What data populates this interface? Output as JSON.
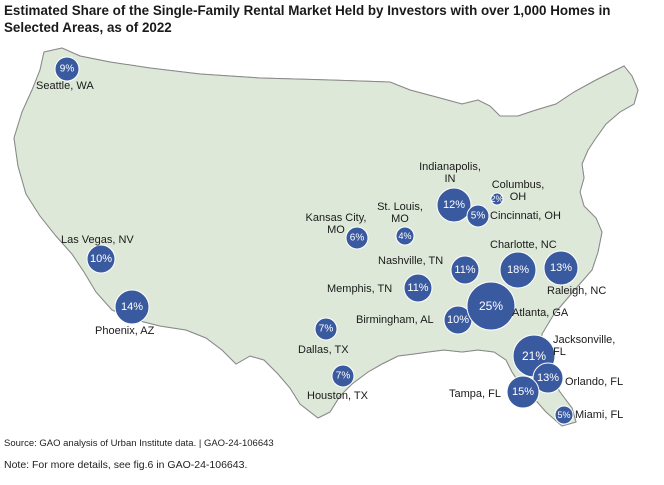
{
  "title": "Estimated Share of the Single-Family Rental Market Held by Investors with over 1,000 Homes in Selected Areas, as of 2022",
  "source": "Source: GAO analysis of Urban Institute data.  |  GAO-24-106643",
  "note": "Note: For more details, see fig.6 in GAO-24-106643.",
  "colors": {
    "land": "#dde8d9",
    "border": "#8a8a8a",
    "bubble": "#3a5aa0"
  },
  "markets": [
    {
      "id": "seattle",
      "pct": "9%",
      "label": [
        "Seattle, WA"
      ]
    },
    {
      "id": "lasvegas",
      "pct": "10%",
      "label": [
        "Las Vegas, NV"
      ]
    },
    {
      "id": "phoenix",
      "pct": "14%",
      "label": [
        "Phoenix, AZ"
      ]
    },
    {
      "id": "kansascity",
      "pct": "6%",
      "label": [
        "Kansas City,",
        "MO"
      ]
    },
    {
      "id": "stlouis",
      "pct": "4%",
      "label": [
        "St. Louis,",
        "MO"
      ]
    },
    {
      "id": "indianapolis",
      "pct": "12%",
      "label": [
        "Indianapolis,",
        "IN"
      ]
    },
    {
      "id": "columbus",
      "pct": "2%",
      "label": [
        "Columbus,",
        "OH"
      ]
    },
    {
      "id": "cincinnati",
      "pct": "5%",
      "label": [
        "Cincinnati, OH"
      ]
    },
    {
      "id": "charlotte",
      "pct": "18%",
      "label": [
        "Charlotte, NC"
      ]
    },
    {
      "id": "raleigh",
      "pct": "13%",
      "label": [
        "Raleigh, NC"
      ]
    },
    {
      "id": "nashville",
      "pct": "11%",
      "label": [
        "Nashville, TN"
      ]
    },
    {
      "id": "memphis",
      "pct": "11%",
      "label": [
        "Memphis, TN"
      ]
    },
    {
      "id": "birmingham",
      "pct": "10%",
      "label": [
        "Birmingham, AL"
      ]
    },
    {
      "id": "atlanta",
      "pct": "25%",
      "label": [
        "Atlanta, GA"
      ]
    },
    {
      "id": "dallas",
      "pct": "7%",
      "label": [
        "Dallas, TX"
      ]
    },
    {
      "id": "houston",
      "pct": "7%",
      "label": [
        "Houston, TX"
      ]
    },
    {
      "id": "jacksonville",
      "pct": "21%",
      "label": [
        "Jacksonville,",
        "FL"
      ]
    },
    {
      "id": "orlando",
      "pct": "13%",
      "label": [
        "Orlando, FL"
      ]
    },
    {
      "id": "tampa",
      "pct": "15%",
      "label": [
        "Tampa, FL"
      ]
    },
    {
      "id": "miami",
      "pct": "5%",
      "label": [
        "Miami, FL"
      ]
    }
  ]
}
